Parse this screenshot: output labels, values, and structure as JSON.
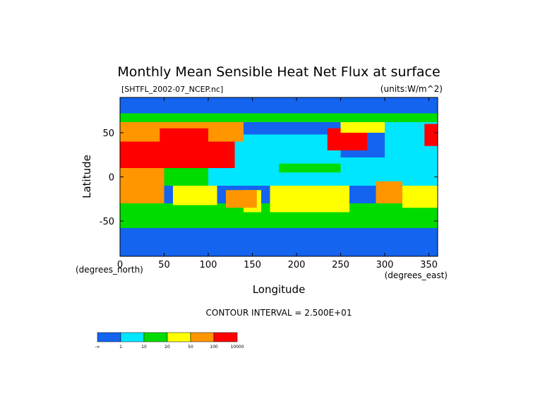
{
  "chart_data": {
    "type": "heatmap",
    "title": "Monthly Mean Sensible Heat Net Flux at surface",
    "file_label": "[SHTFL_2002-07_NCEP.nc]",
    "units_label": "(units:W/m^2)",
    "xlabel": "Longitude",
    "ylabel": "Latitude",
    "x_unit_label": "(degrees_east)",
    "y_unit_label": "(degrees_north)",
    "xlim": [
      0,
      360
    ],
    "ylim": [
      -90,
      90
    ],
    "x_ticks": [
      0,
      50,
      100,
      150,
      200,
      250,
      300,
      350
    ],
    "y_ticks": [
      -50,
      0,
      50
    ],
    "contour_interval": "CONTOUR INTERVAL = 2.500E+01",
    "colorbar": {
      "labels": [
        "-∞",
        "1",
        "10",
        "20",
        "50",
        "100",
        "10000"
      ],
      "colors": [
        "#1464f0",
        "#00e6ff",
        "#00dc00",
        "#ffff00",
        "#ff9600",
        "#ff0000"
      ]
    },
    "regions": [
      {
        "lon0": 0,
        "lon1": 360,
        "lat0": -90,
        "lat1": -58,
        "level": 0
      },
      {
        "lon0": 0,
        "lon1": 360,
        "lat0": -58,
        "lat1": -50,
        "level": 2
      },
      {
        "lon0": 0,
        "lon1": 360,
        "lat0": -50,
        "lat1": -30,
        "level": 2
      },
      {
        "lon0": 60,
        "lon1": 110,
        "lat0": -32,
        "lat1": -10,
        "level": 3
      },
      {
        "lon0": 170,
        "lon1": 260,
        "lat0": -40,
        "lat1": -10,
        "level": 3
      },
      {
        "lon0": 320,
        "lon1": 360,
        "lat0": -35,
        "lat1": -10,
        "level": 3
      },
      {
        "lon0": 140,
        "lon1": 160,
        "lat0": -40,
        "lat1": -15,
        "level": 3
      },
      {
        "lon0": 0,
        "lon1": 360,
        "lat0": -10,
        "lat1": 22,
        "level": 1
      },
      {
        "lon0": 40,
        "lon1": 100,
        "lat0": -10,
        "lat1": 15,
        "level": 2
      },
      {
        "lon0": 0,
        "lon1": 50,
        "lat0": -30,
        "lat1": 10,
        "level": 4
      },
      {
        "lon0": 120,
        "lon1": 155,
        "lat0": -35,
        "lat1": -15,
        "level": 4
      },
      {
        "lon0": 290,
        "lon1": 320,
        "lat0": -30,
        "lat1": -5,
        "level": 4
      },
      {
        "lon0": 130,
        "lon1": 250,
        "lat0": 20,
        "lat1": 50,
        "level": 1
      },
      {
        "lon0": 130,
        "lon1": 250,
        "lat0": 48,
        "lat1": 62,
        "level": 0
      },
      {
        "lon0": 0,
        "lon1": 130,
        "lat0": 10,
        "lat1": 40,
        "level": 5
      },
      {
        "lon0": 0,
        "lon1": 140,
        "lat0": 40,
        "lat1": 70,
        "level": 4
      },
      {
        "lon0": 45,
        "lon1": 100,
        "lat0": 40,
        "lat1": 55,
        "level": 5
      },
      {
        "lon0": 235,
        "lon1": 280,
        "lat0": 30,
        "lat1": 55,
        "level": 5
      },
      {
        "lon0": 250,
        "lon1": 300,
        "lat0": 50,
        "lat1": 70,
        "level": 3
      },
      {
        "lon0": 300,
        "lon1": 360,
        "lat0": 20,
        "lat1": 70,
        "level": 1
      },
      {
        "lon0": 345,
        "lon1": 360,
        "lat0": 35,
        "lat1": 60,
        "level": 5
      },
      {
        "lon0": 0,
        "lon1": 360,
        "lat0": 70,
        "lat1": 90,
        "level": 0
      },
      {
        "lon0": 0,
        "lon1": 360,
        "lat0": 62,
        "lat1": 72,
        "level": 2
      },
      {
        "lon0": 180,
        "lon1": 250,
        "lat0": 5,
        "lat1": 15,
        "level": 2
      }
    ]
  }
}
